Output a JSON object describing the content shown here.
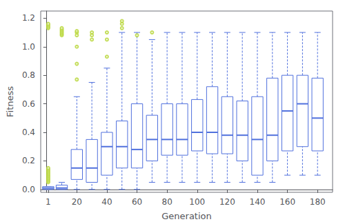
{
  "chart_data": {
    "type": "box",
    "xlabel": "Generation",
    "ylabel": "Fitness",
    "x": [
      1,
      10,
      20,
      30,
      40,
      50,
      60,
      70,
      80,
      90,
      100,
      110,
      120,
      130,
      140,
      150,
      160,
      170,
      180
    ],
    "boxes": [
      {
        "q1": 0.0,
        "median": 0.01,
        "q3": 0.02,
        "whisker_lo": 0.0,
        "whisker_hi": 0.02,
        "outliers": [
          0.05,
          0.06,
          0.07,
          0.08,
          0.09,
          0.1,
          0.11,
          0.12,
          0.13,
          0.14,
          0.15,
          1.13,
          1.14,
          1.15,
          1.16
        ]
      },
      {
        "q1": 0.0,
        "median": 0.01,
        "q3": 0.03,
        "whisker_lo": 0.0,
        "whisker_hi": 0.05,
        "outliers": [
          1.08,
          1.09,
          1.1,
          1.11,
          1.12,
          1.13
        ]
      },
      {
        "q1": 0.07,
        "median": 0.15,
        "q3": 0.28,
        "whisker_lo": 0.0,
        "whisker_hi": 0.65,
        "outliers": [
          0.77,
          0.88,
          1.0,
          1.08,
          1.1,
          1.11
        ]
      },
      {
        "q1": 0.05,
        "median": 0.15,
        "q3": 0.35,
        "whisker_lo": 0.0,
        "whisker_hi": 0.75,
        "outliers": [
          1.05,
          1.08,
          1.1
        ]
      },
      {
        "q1": 0.1,
        "median": 0.3,
        "q3": 0.4,
        "whisker_lo": 0.0,
        "whisker_hi": 0.85,
        "outliers": [
          0.93,
          1.05,
          1.1
        ]
      },
      {
        "q1": 0.15,
        "median": 0.3,
        "q3": 0.48,
        "whisker_lo": 0.0,
        "whisker_hi": 1.1,
        "outliers": [
          1.13,
          1.16,
          1.18
        ]
      },
      {
        "q1": 0.15,
        "median": 0.28,
        "q3": 0.6,
        "whisker_lo": 0.0,
        "whisker_hi": 1.1,
        "outliers": [
          1.08
        ]
      },
      {
        "q1": 0.2,
        "median": 0.35,
        "q3": 0.52,
        "whisker_lo": 0.05,
        "whisker_hi": 1.05,
        "outliers": [
          1.1
        ]
      },
      {
        "q1": 0.24,
        "median": 0.35,
        "q3": 0.6,
        "whisker_lo": 0.05,
        "whisker_hi": 1.1,
        "outliers": []
      },
      {
        "q1": 0.24,
        "median": 0.35,
        "q3": 0.6,
        "whisker_lo": 0.05,
        "whisker_hi": 1.1,
        "outliers": []
      },
      {
        "q1": 0.27,
        "median": 0.4,
        "q3": 0.63,
        "whisker_lo": 0.05,
        "whisker_hi": 1.1,
        "outliers": []
      },
      {
        "q1": 0.25,
        "median": 0.4,
        "q3": 0.72,
        "whisker_lo": 0.05,
        "whisker_hi": 1.1,
        "outliers": []
      },
      {
        "q1": 0.25,
        "median": 0.38,
        "q3": 0.65,
        "whisker_lo": 0.05,
        "whisker_hi": 1.1,
        "outliers": []
      },
      {
        "q1": 0.2,
        "median": 0.38,
        "q3": 0.62,
        "whisker_lo": 0.05,
        "whisker_hi": 1.1,
        "outliers": []
      },
      {
        "q1": 0.1,
        "median": 0.35,
        "q3": 0.65,
        "whisker_lo": 0.05,
        "whisker_hi": 1.1,
        "outliers": []
      },
      {
        "q1": 0.2,
        "median": 0.38,
        "q3": 0.78,
        "whisker_lo": 0.05,
        "whisker_hi": 1.1,
        "outliers": []
      },
      {
        "q1": 0.27,
        "median": 0.55,
        "q3": 0.8,
        "whisker_lo": 0.1,
        "whisker_hi": 1.1,
        "outliers": []
      },
      {
        "q1": 0.3,
        "median": 0.6,
        "q3": 0.8,
        "whisker_lo": 0.1,
        "whisker_hi": 1.1,
        "outliers": []
      },
      {
        "q1": 0.27,
        "median": 0.5,
        "q3": 0.78,
        "whisker_lo": 0.1,
        "whisker_hi": 1.1,
        "outliers": []
      }
    ],
    "xlim": [
      -4,
      190
    ],
    "xticks": [
      1,
      20,
      40,
      60,
      80,
      100,
      120,
      140,
      160,
      180
    ],
    "ylim": [
      -0.02,
      1.25
    ],
    "yticks": [
      {
        "value": 0.0,
        "label": "0.0"
      },
      {
        "value": 0.2,
        "label": "0.2"
      },
      {
        "value": 0.4,
        "label": "0.4"
      },
      {
        "value": 0.6,
        "label": "0.6"
      },
      {
        "value": 0.8,
        "label": "0.8"
      },
      {
        "value": 1.0,
        "label": "1.0"
      },
      {
        "value": 1.2,
        "label": "1.2"
      }
    ],
    "grid": false
  }
}
